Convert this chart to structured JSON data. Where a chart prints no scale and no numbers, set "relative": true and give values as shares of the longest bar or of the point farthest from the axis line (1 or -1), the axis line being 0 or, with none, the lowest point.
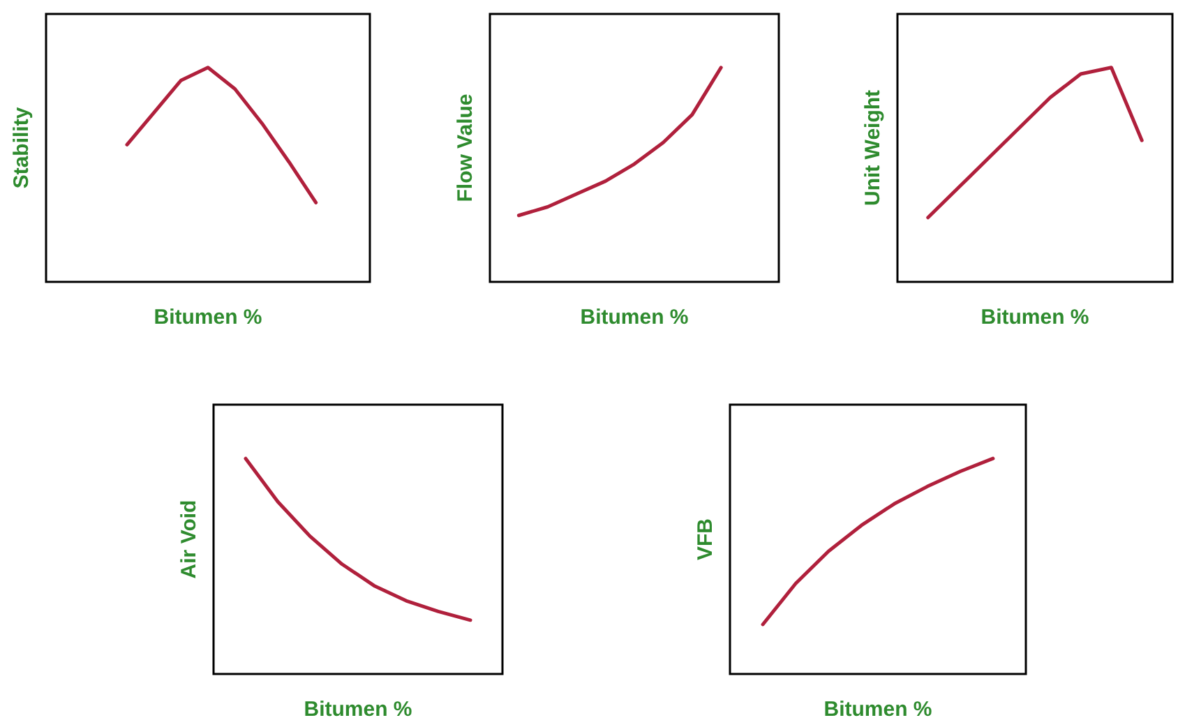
{
  "chart_data": [
    {
      "type": "line",
      "xlabel": "Bitumen %",
      "ylabel": "Stability",
      "relative": true,
      "marker": "none",
      "color": "#b0203c",
      "categories": [
        null,
        null,
        null,
        null,
        null,
        null,
        null,
        null,
        null,
        null,
        null,
        null,
        null
      ],
      "values": [
        null,
        null,
        null,
        0.64,
        0.79,
        0.94,
        1,
        0.9,
        0.74,
        0.56,
        0.37,
        null,
        null
      ]
    },
    {
      "type": "line",
      "xlabel": "Bitumen %",
      "ylabel": "Flow Value",
      "relative": true,
      "marker": "none",
      "color": "#b0203c",
      "categories": [
        null,
        null,
        null,
        null,
        null,
        null,
        null,
        null,
        null,
        null,
        null
      ],
      "values": [
        null,
        0.31,
        0.35,
        0.41,
        0.47,
        0.55,
        0.65,
        0.78,
        1,
        null,
        null
      ]
    },
    {
      "type": "line",
      "xlabel": "Bitumen %",
      "ylabel": "Unit Weight",
      "relative": true,
      "marker": "none",
      "color": "#b0203c",
      "categories": [
        null,
        null,
        null,
        null,
        null,
        null,
        null,
        null,
        null,
        null
      ],
      "values": [
        null,
        0.3,
        0.44,
        0.58,
        0.72,
        0.86,
        0.97,
        1,
        0.66,
        null
      ]
    },
    {
      "type": "line",
      "xlabel": "Bitumen %",
      "ylabel": "Air Void",
      "relative": true,
      "marker": "none",
      "color": "#b0203c",
      "categories": [
        null,
        null,
        null,
        null,
        null,
        null,
        null,
        null,
        null,
        null
      ],
      "values": [
        null,
        1,
        0.8,
        0.64,
        0.51,
        0.41,
        0.34,
        0.29,
        0.25,
        null
      ]
    },
    {
      "type": "line",
      "xlabel": "Bitumen %",
      "ylabel": "VFB",
      "relative": true,
      "marker": "none",
      "color": "#b0203c",
      "categories": [
        null,
        null,
        null,
        null,
        null,
        null,
        null,
        null,
        null,
        null
      ],
      "values": [
        null,
        0.23,
        0.42,
        0.57,
        0.69,
        0.79,
        0.87,
        0.94,
        1,
        null
      ]
    }
  ]
}
